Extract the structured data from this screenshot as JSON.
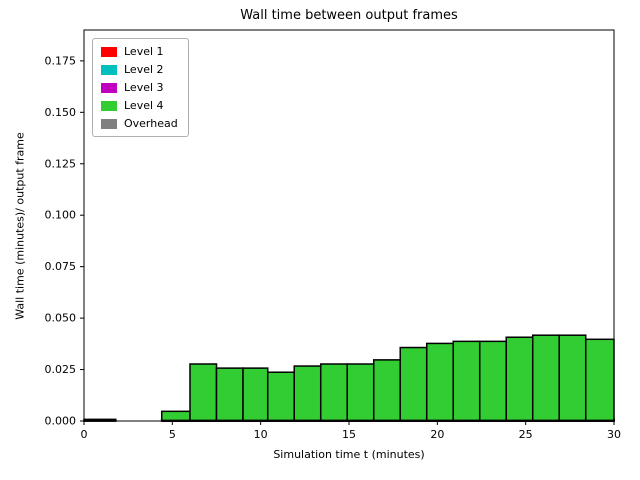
{
  "chart_data": {
    "type": "bar",
    "title": "Wall time between output frames",
    "xlabel": "Simulation time t (minutes)",
    "ylabel": "Wall time (minutes)/ output frame",
    "xlim": [
      0,
      30
    ],
    "ylim": [
      0,
      0.19
    ],
    "grid": false,
    "legend_position": "upper left",
    "bar_edge_color": "#000000",
    "xticks": [
      {
        "v": 0,
        "label": "0"
      },
      {
        "v": 5,
        "label": "5"
      },
      {
        "v": 10,
        "label": "10"
      },
      {
        "v": 15,
        "label": "15"
      },
      {
        "v": 20,
        "label": "20"
      },
      {
        "v": 25,
        "label": "25"
      },
      {
        "v": 30,
        "label": "30"
      }
    ],
    "yticks": [
      {
        "v": 0.0,
        "label": "0.000"
      },
      {
        "v": 0.025,
        "label": "0.025"
      },
      {
        "v": 0.05,
        "label": "0.050"
      },
      {
        "v": 0.075,
        "label": "0.075"
      },
      {
        "v": 0.1,
        "label": "0.100"
      },
      {
        "v": 0.125,
        "label": "0.125"
      },
      {
        "v": 0.15,
        "label": "0.150"
      },
      {
        "v": 0.175,
        "label": "0.175"
      }
    ],
    "legend": [
      {
        "key": "level1",
        "label": "Level 1",
        "color": "#ff0000"
      },
      {
        "key": "level2",
        "label": "Level 2",
        "color": "#00bfbf"
      },
      {
        "key": "level3",
        "label": "Level 3",
        "color": "#bf00bf"
      },
      {
        "key": "level4",
        "label": "Level 4",
        "color": "#32cd32"
      },
      {
        "key": "overhead",
        "label": "Overhead",
        "color": "#808080"
      }
    ],
    "bars": [
      {
        "x0": 0.0,
        "x1": 1.8,
        "total": 0.001,
        "segments": [
          [
            "level1",
            0.0008
          ],
          [
            "level2",
            0.0002
          ]
        ]
      },
      {
        "x0": 4.4,
        "x1": 6.0,
        "total": 0.007,
        "segments": [
          [
            "level1",
            0.0008
          ],
          [
            "level2",
            0.0006
          ],
          [
            "level3",
            0.0006
          ],
          [
            "level4",
            0.0047
          ],
          [
            "overhead",
            0.0003
          ]
        ]
      },
      {
        "x0": 6.0,
        "x1": 7.5,
        "total": 0.03,
        "segments": [
          [
            "level1",
            0.0008
          ],
          [
            "level2",
            0.0006
          ],
          [
            "level3",
            0.0006
          ],
          [
            "level4",
            0.0277
          ],
          [
            "overhead",
            0.0003
          ]
        ]
      },
      {
        "x0": 7.5,
        "x1": 9.0,
        "total": 0.028,
        "segments": [
          [
            "level1",
            0.0008
          ],
          [
            "level2",
            0.0006
          ],
          [
            "level3",
            0.0006
          ],
          [
            "level4",
            0.0257
          ],
          [
            "overhead",
            0.0003
          ]
        ]
      },
      {
        "x0": 9.0,
        "x1": 10.4,
        "total": 0.028,
        "segments": [
          [
            "level1",
            0.0008
          ],
          [
            "level2",
            0.0006
          ],
          [
            "level3",
            0.0006
          ],
          [
            "level4",
            0.0257
          ],
          [
            "overhead",
            0.0003
          ]
        ]
      },
      {
        "x0": 10.4,
        "x1": 11.9,
        "total": 0.026,
        "segments": [
          [
            "level1",
            0.0008
          ],
          [
            "level2",
            0.0006
          ],
          [
            "level3",
            0.0006
          ],
          [
            "level4",
            0.0237
          ],
          [
            "overhead",
            0.0003
          ]
        ]
      },
      {
        "x0": 11.9,
        "x1": 13.4,
        "total": 0.029,
        "segments": [
          [
            "level1",
            0.0008
          ],
          [
            "level2",
            0.0006
          ],
          [
            "level3",
            0.0006
          ],
          [
            "level4",
            0.0267
          ],
          [
            "overhead",
            0.0003
          ]
        ]
      },
      {
        "x0": 13.4,
        "x1": 14.9,
        "total": 0.03,
        "segments": [
          [
            "level1",
            0.0008
          ],
          [
            "level2",
            0.0006
          ],
          [
            "level3",
            0.0006
          ],
          [
            "level4",
            0.0277
          ],
          [
            "overhead",
            0.0003
          ]
        ]
      },
      {
        "x0": 14.9,
        "x1": 16.4,
        "total": 0.03,
        "segments": [
          [
            "level1",
            0.0008
          ],
          [
            "level2",
            0.0006
          ],
          [
            "level3",
            0.0006
          ],
          [
            "level4",
            0.0277
          ],
          [
            "overhead",
            0.0003
          ]
        ]
      },
      {
        "x0": 16.4,
        "x1": 17.9,
        "total": 0.032,
        "segments": [
          [
            "level1",
            0.0008
          ],
          [
            "level2",
            0.0006
          ],
          [
            "level3",
            0.0006
          ],
          [
            "level4",
            0.0297
          ],
          [
            "overhead",
            0.0003
          ]
        ]
      },
      {
        "x0": 17.9,
        "x1": 19.4,
        "total": 0.038,
        "segments": [
          [
            "level1",
            0.0008
          ],
          [
            "level2",
            0.0006
          ],
          [
            "level3",
            0.0006
          ],
          [
            "level4",
            0.0357
          ],
          [
            "overhead",
            0.0003
          ]
        ]
      },
      {
        "x0": 19.4,
        "x1": 20.9,
        "total": 0.04,
        "segments": [
          [
            "level1",
            0.0008
          ],
          [
            "level2",
            0.0006
          ],
          [
            "level3",
            0.0006
          ],
          [
            "level4",
            0.0377
          ],
          [
            "overhead",
            0.0003
          ]
        ]
      },
      {
        "x0": 20.9,
        "x1": 22.4,
        "total": 0.041,
        "segments": [
          [
            "level1",
            0.0008
          ],
          [
            "level2",
            0.0006
          ],
          [
            "level3",
            0.0006
          ],
          [
            "level4",
            0.0387
          ],
          [
            "overhead",
            0.0003
          ]
        ]
      },
      {
        "x0": 22.4,
        "x1": 23.9,
        "total": 0.041,
        "segments": [
          [
            "level1",
            0.0008
          ],
          [
            "level2",
            0.0006
          ],
          [
            "level3",
            0.0006
          ],
          [
            "level4",
            0.0387
          ],
          [
            "overhead",
            0.0003
          ]
        ]
      },
      {
        "x0": 23.9,
        "x1": 25.4,
        "total": 0.043,
        "segments": [
          [
            "level1",
            0.0008
          ],
          [
            "level2",
            0.0006
          ],
          [
            "level3",
            0.0006
          ],
          [
            "level4",
            0.0407
          ],
          [
            "overhead",
            0.0003
          ]
        ]
      },
      {
        "x0": 25.4,
        "x1": 26.9,
        "total": 0.044,
        "segments": [
          [
            "level1",
            0.0008
          ],
          [
            "level2",
            0.0006
          ],
          [
            "level3",
            0.0006
          ],
          [
            "level4",
            0.0417
          ],
          [
            "overhead",
            0.0003
          ]
        ]
      },
      {
        "x0": 26.9,
        "x1": 28.4,
        "total": 0.044,
        "segments": [
          [
            "level1",
            0.0008
          ],
          [
            "level2",
            0.0006
          ],
          [
            "level3",
            0.0006
          ],
          [
            "level4",
            0.0417
          ],
          [
            "overhead",
            0.0003
          ]
        ]
      },
      {
        "x0": 28.4,
        "x1": 30.0,
        "total": 0.042,
        "segments": [
          [
            "level1",
            0.0008
          ],
          [
            "level2",
            0.0006
          ],
          [
            "level3",
            0.0006
          ],
          [
            "level4",
            0.0397
          ],
          [
            "overhead",
            0.0003
          ]
        ]
      }
    ]
  }
}
